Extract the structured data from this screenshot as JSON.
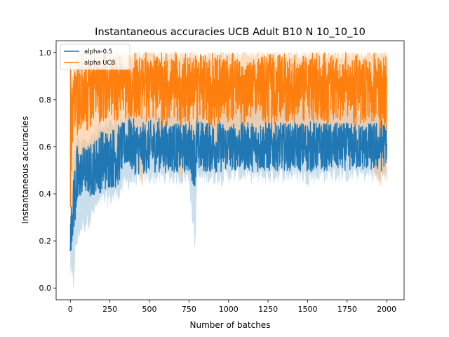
{
  "chart_data": {
    "type": "line",
    "title": "Instantaneous accuracies UCB Adult B10 N 10_10_10",
    "xlabel": "Number of batches",
    "ylabel": "Instantaneous accuracies",
    "xlim": [
      -90,
      2110
    ],
    "ylim": [
      -0.05,
      1.05
    ],
    "xticks": [
      0,
      250,
      500,
      750,
      1000,
      1250,
      1500,
      1750,
      2000
    ],
    "xtick_labels": [
      "0",
      "250",
      "500",
      "750",
      "1000",
      "1250",
      "1500",
      "1750",
      "2000"
    ],
    "yticks": [
      0.0,
      0.2,
      0.4,
      0.6,
      0.8,
      1.0
    ],
    "ytick_labels": [
      "0.0",
      "0.2",
      "0.4",
      "0.6",
      "0.8",
      "1.0"
    ],
    "grid": false,
    "legend_position": "top-left",
    "series": [
      {
        "name": "alpha-0.5",
        "color": "#1f77b4",
        "band_color": "#a6c8e0",
        "x": [
          0,
          10,
          20,
          30,
          45,
          60,
          80,
          100,
          130,
          160,
          200,
          250,
          300,
          330,
          360,
          400,
          450,
          500,
          550,
          600,
          650,
          700,
          750,
          790,
          800,
          850,
          900,
          950,
          1000,
          1100,
          1200,
          1300,
          1400,
          1500,
          1600,
          1700,
          1800,
          1900,
          1950,
          2000
        ],
        "mean": [
          0.2,
          0.3,
          0.35,
          0.42,
          0.45,
          0.48,
          0.5,
          0.5,
          0.5,
          0.52,
          0.54,
          0.55,
          0.56,
          0.6,
          0.62,
          0.6,
          0.59,
          0.6,
          0.61,
          0.6,
          0.6,
          0.59,
          0.6,
          0.55,
          0.6,
          0.6,
          0.6,
          0.6,
          0.6,
          0.6,
          0.6,
          0.6,
          0.6,
          0.6,
          0.6,
          0.6,
          0.6,
          0.6,
          0.6,
          0.62
        ],
        "lower": [
          0.06,
          0.05,
          0.0,
          0.15,
          0.2,
          0.25,
          0.26,
          0.28,
          0.3,
          0.34,
          0.37,
          0.38,
          0.4,
          0.43,
          0.45,
          0.46,
          0.46,
          0.47,
          0.47,
          0.47,
          0.47,
          0.47,
          0.47,
          0.16,
          0.47,
          0.47,
          0.47,
          0.47,
          0.48,
          0.48,
          0.47,
          0.48,
          0.48,
          0.47,
          0.48,
          0.48,
          0.48,
          0.48,
          0.47,
          0.48
        ],
        "upper": [
          0.3,
          0.42,
          0.5,
          0.6,
          0.65,
          0.6,
          0.62,
          0.62,
          0.64,
          0.66,
          0.7,
          0.7,
          0.72,
          0.72,
          0.74,
          0.74,
          0.74,
          0.76,
          0.74,
          0.76,
          0.76,
          0.76,
          0.74,
          0.7,
          0.76,
          0.78,
          0.76,
          0.76,
          0.78,
          0.76,
          0.78,
          0.76,
          0.8,
          0.76,
          0.78,
          0.76,
          0.76,
          0.76,
          0.76,
          0.72
        ]
      },
      {
        "name": "alpha UCB",
        "color": "#ff7f0e",
        "band_color": "#ffbf86",
        "x": [
          0,
          10,
          20,
          40,
          60,
          80,
          100,
          150,
          200,
          250,
          300,
          350,
          400,
          450,
          500,
          550,
          600,
          650,
          700,
          750,
          800,
          900,
          1000,
          1100,
          1200,
          1300,
          1400,
          1500,
          1600,
          1700,
          1800,
          1900,
          1950,
          2000
        ],
        "mean": [
          0.5,
          0.72,
          0.78,
          0.8,
          0.82,
          0.83,
          0.82,
          0.83,
          0.84,
          0.85,
          0.84,
          0.84,
          0.85,
          0.84,
          0.84,
          0.84,
          0.83,
          0.84,
          0.83,
          0.84,
          0.84,
          0.83,
          0.84,
          0.83,
          0.84,
          0.83,
          0.84,
          0.84,
          0.83,
          0.84,
          0.83,
          0.84,
          0.82,
          0.8
        ],
        "lower": [
          0.2,
          0.42,
          0.48,
          0.5,
          0.52,
          0.52,
          0.46,
          0.55,
          0.56,
          0.57,
          0.58,
          0.58,
          0.58,
          0.45,
          0.58,
          0.58,
          0.58,
          0.58,
          0.46,
          0.58,
          0.58,
          0.58,
          0.58,
          0.58,
          0.58,
          0.58,
          0.58,
          0.58,
          0.58,
          0.58,
          0.58,
          0.58,
          0.44,
          0.5
        ],
        "upper": [
          0.8,
          0.9,
          0.95,
          0.98,
          1.0,
          1.0,
          1.0,
          1.0,
          1.0,
          1.0,
          1.0,
          1.0,
          1.0,
          1.0,
          1.0,
          1.0,
          1.0,
          1.0,
          1.0,
          1.0,
          1.0,
          1.0,
          1.0,
          1.0,
          1.0,
          1.0,
          1.0,
          1.0,
          1.0,
          1.0,
          1.0,
          1.0,
          1.0,
          1.0
        ]
      }
    ]
  }
}
